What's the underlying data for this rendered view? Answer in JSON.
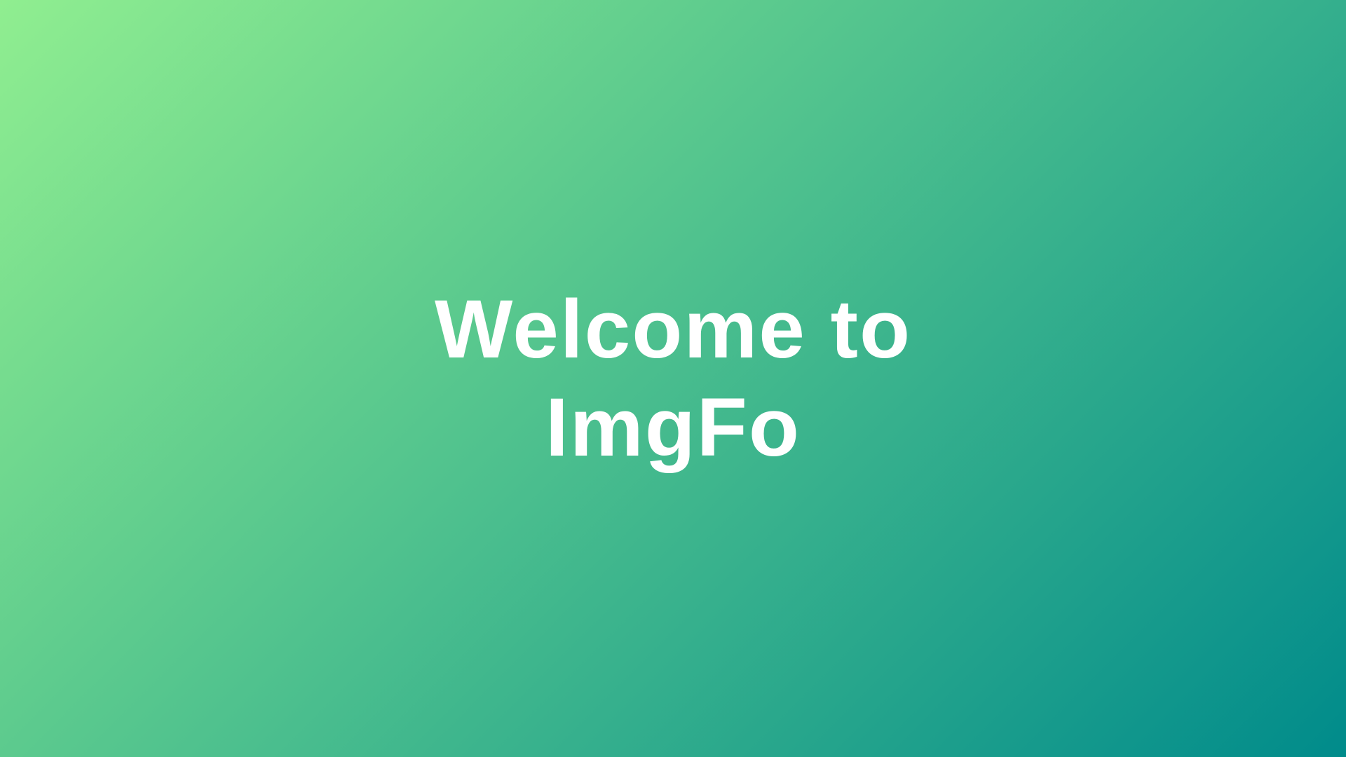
{
  "headline": {
    "line1": "Welcome to",
    "line2": "ImgFo"
  },
  "colors": {
    "gradient_start": "#90ee90",
    "gradient_end": "#008b8b",
    "text": "#ffffff"
  }
}
